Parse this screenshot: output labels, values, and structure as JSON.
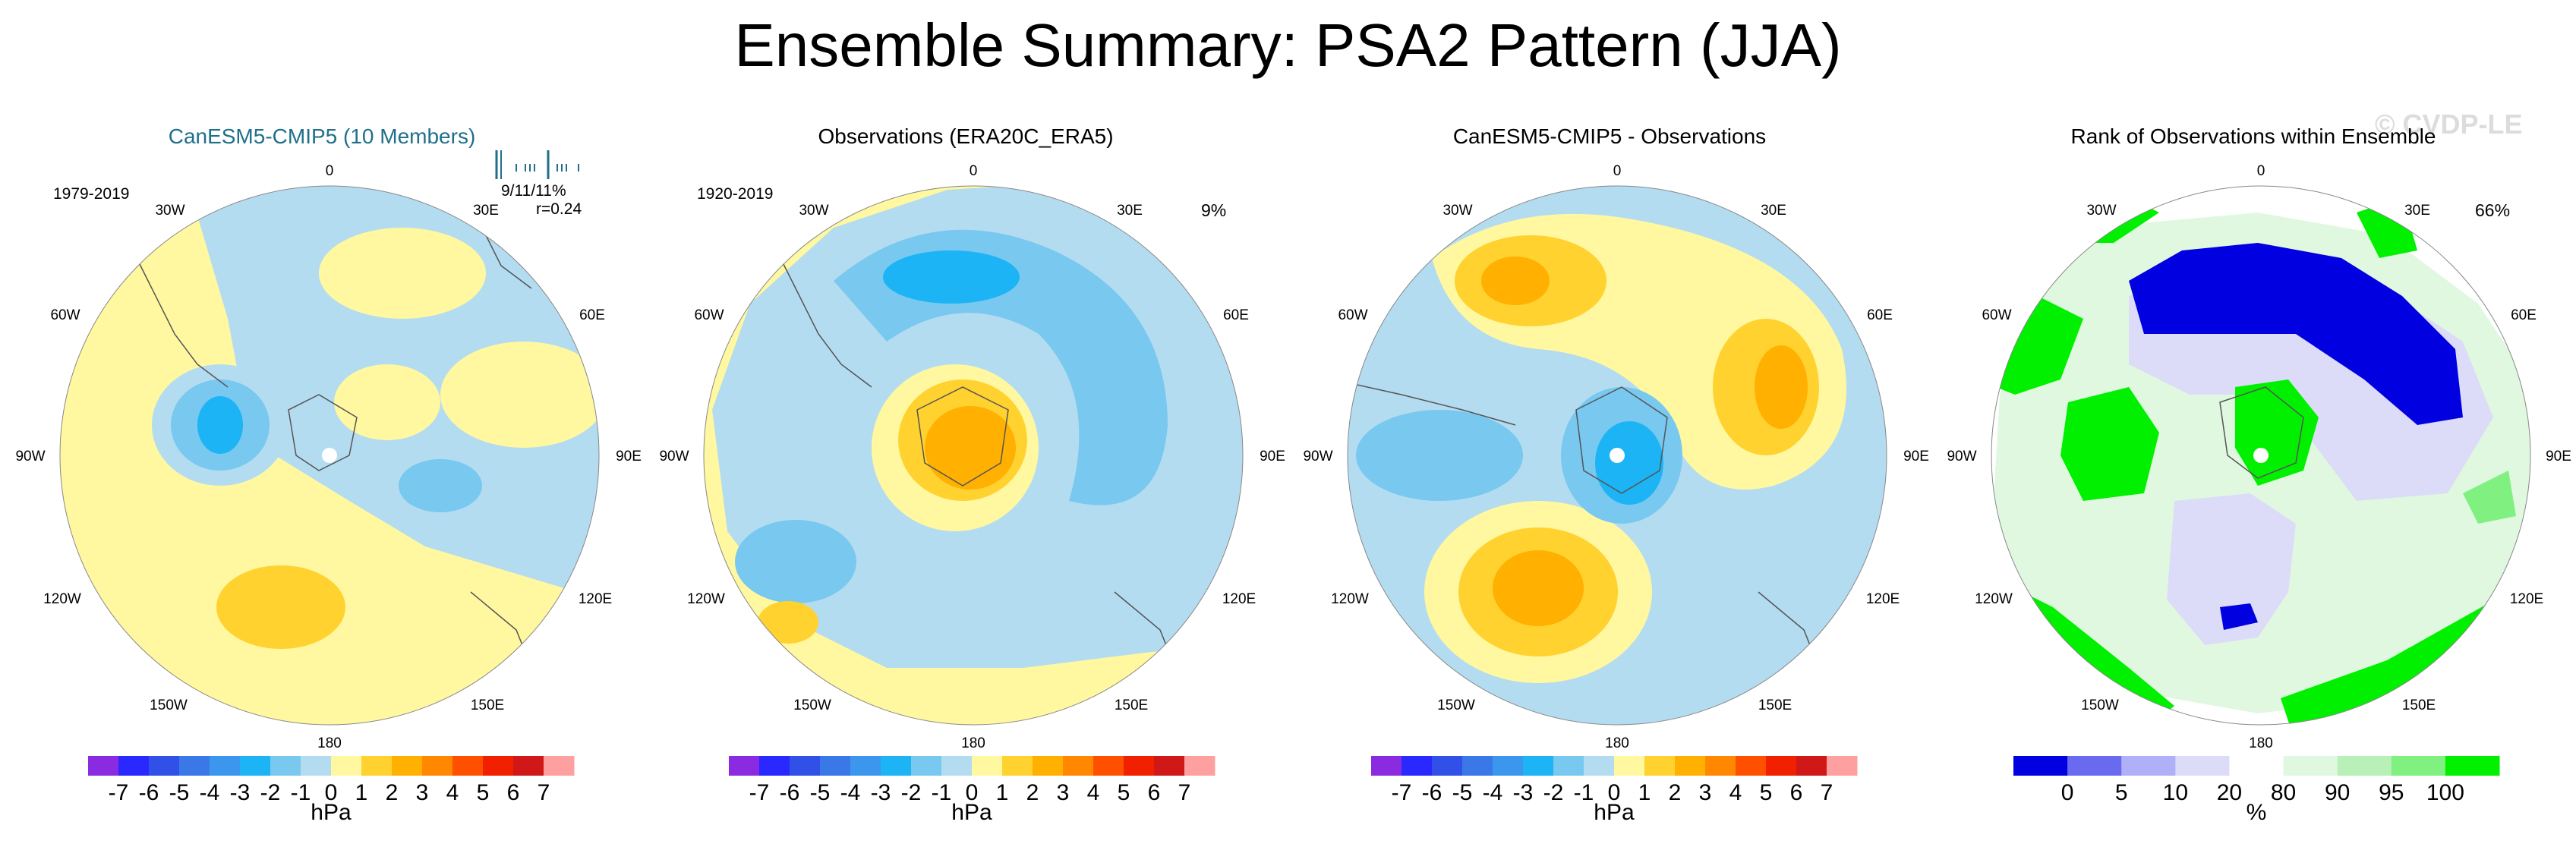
{
  "title": "Ensemble Summary: PSA2 Pattern (JJA)",
  "watermark": "© CVDP-LE",
  "lon_labels": [
    "0",
    "30E",
    "60E",
    "90E",
    "120E",
    "150E",
    "180",
    "150W",
    "120W",
    "90W",
    "60W",
    "30W"
  ],
  "colors": {
    "diverging": [
      "#8a2be2",
      "#2828ff",
      "#3050e8",
      "#3a78e8",
      "#3c96ee",
      "#1cb4f4",
      "#78c8f0",
      "#b4dcf0",
      "#fff8a0",
      "#ffd230",
      "#ffb000",
      "#ff8800",
      "#ff5000",
      "#f02000",
      "#d01818",
      "#ffa0a0"
    ],
    "rank": [
      "#0000e0",
      "#6a6af0",
      "#b0b0f8",
      "#dcdcf8",
      "#ffffff",
      "#e0f8e0",
      "#b8f0b8",
      "#80f080",
      "#00f000"
    ],
    "title_blue": "#1f6f8b"
  },
  "chart_data": [
    {
      "type": "heatmap",
      "title": "CanESM5-CMIP5 (10 Members)",
      "period": "1979-2019",
      "stats": "9/11/11%",
      "correlation": "r=0.24",
      "colorbar_ticks": [
        "-7",
        "-6",
        "-5",
        "-4",
        "-3",
        "-2",
        "-1",
        "0",
        "1",
        "2",
        "3",
        "4",
        "5",
        "6",
        "7"
      ],
      "units": "hPa",
      "projection": "polar stereographic, South Pole"
    },
    {
      "type": "heatmap",
      "title": "Observations (ERA20C_ERA5)",
      "period": "1920-2019",
      "percent": "9%",
      "colorbar_ticks": [
        "-7",
        "-6",
        "-5",
        "-4",
        "-3",
        "-2",
        "-1",
        "0",
        "1",
        "2",
        "3",
        "4",
        "5",
        "6",
        "7"
      ],
      "units": "hPa",
      "projection": "polar stereographic, South Pole"
    },
    {
      "type": "heatmap",
      "title": "CanESM5-CMIP5 - Observations",
      "colorbar_ticks": [
        "-7",
        "-6",
        "-5",
        "-4",
        "-3",
        "-2",
        "-1",
        "0",
        "1",
        "2",
        "3",
        "4",
        "5",
        "6",
        "7"
      ],
      "units": "hPa",
      "projection": "polar stereographic, South Pole"
    },
    {
      "type": "heatmap",
      "title": "Rank of Observations within Ensemble",
      "percent": "66%",
      "colorbar_ticks": [
        "0",
        "5",
        "10",
        "20",
        "80",
        "90",
        "95",
        "100"
      ],
      "units": "%",
      "projection": "polar stereographic, South Pole"
    }
  ]
}
